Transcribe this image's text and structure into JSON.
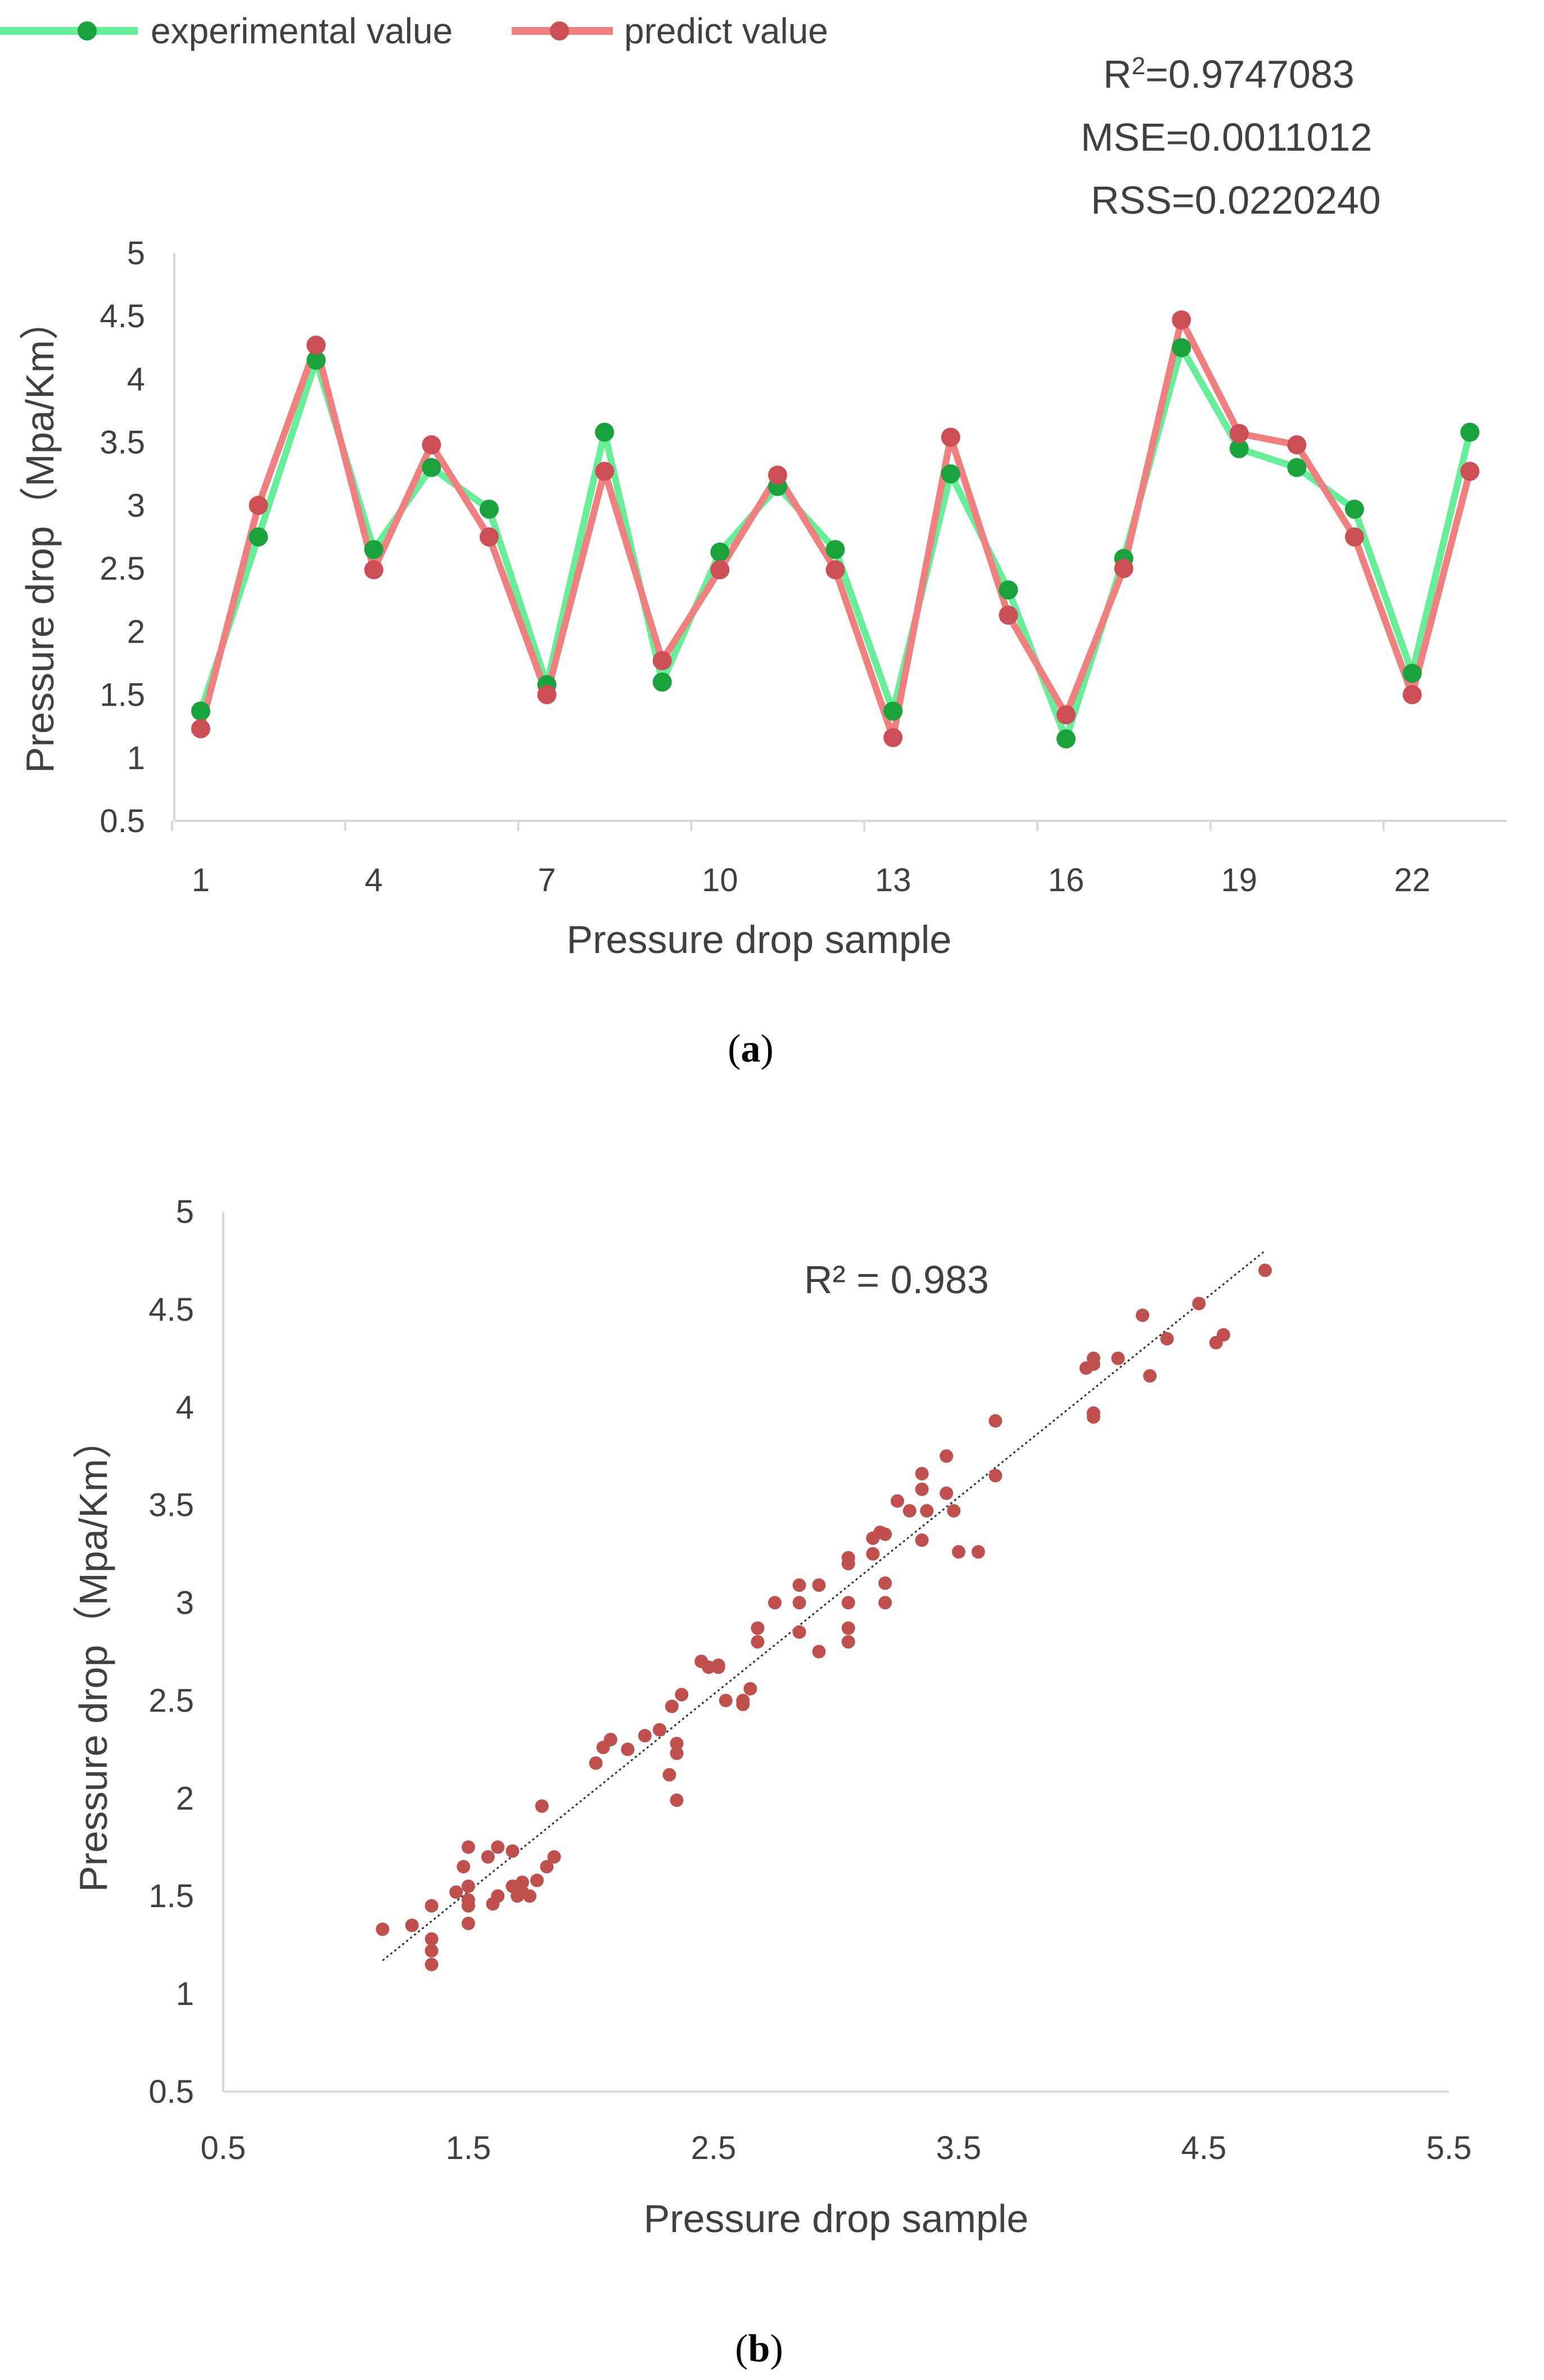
{
  "chart_data": [
    {
      "type": "line",
      "caption_open": "(",
      "caption_label": "a",
      "caption_close": ")",
      "xlabel": "Pressure drop sample",
      "ylabel": "Pressure drop（Mpa/Km）",
      "ylim": [
        0.5,
        5
      ],
      "yticks": [
        "0.5",
        "1",
        "1.5",
        "2",
        "2.5",
        "3",
        "3.5",
        "4",
        "4.5",
        "5"
      ],
      "xticks": [
        "1",
        "4",
        "7",
        "10",
        "13",
        "16",
        "19",
        "22"
      ],
      "x": [
        1,
        2,
        3,
        4,
        5,
        6,
        7,
        8,
        9,
        10,
        11,
        12,
        13,
        14,
        15,
        16,
        17,
        18,
        19,
        20,
        21,
        22,
        23
      ],
      "legend_position": "top-left",
      "series": [
        {
          "name": "experimental value",
          "color": "#66ee99",
          "marker_color": "#1aa33c",
          "values": [
            1.37,
            2.75,
            4.15,
            2.65,
            3.3,
            2.97,
            1.58,
            3.58,
            1.6,
            2.63,
            3.15,
            2.65,
            1.37,
            3.25,
            2.33,
            1.15,
            2.58,
            4.25,
            3.45,
            3.3,
            2.97,
            1.67,
            3.58
          ]
        },
        {
          "name": "predict value",
          "color": "#f08080",
          "marker_color": "#cc4f55",
          "values": [
            1.23,
            3.0,
            4.27,
            2.49,
            3.48,
            2.75,
            1.5,
            3.27,
            1.77,
            2.49,
            3.24,
            2.49,
            1.16,
            3.54,
            2.13,
            1.34,
            2.5,
            4.47,
            3.57,
            3.48,
            2.75,
            1.5,
            3.27
          ]
        }
      ],
      "annotations": {
        "r2_prefix": "R",
        "r2_sup": "2",
        "r2_value": "=0.9747083",
        "mse": "MSE=0.0011012",
        "rss": "RSS=0.0220240"
      }
    },
    {
      "type": "scatter",
      "caption_open": "(",
      "caption_label": "b",
      "caption_close": ")",
      "xlabel": "Pressure drop sample",
      "ylabel": "Pressure drop（Mpa/Km）",
      "xlim": [
        0.5,
        5.5
      ],
      "ylim": [
        0.5,
        5
      ],
      "xticks": [
        "0.5",
        "1.5",
        "2.5",
        "3.5",
        "4.5",
        "5.5"
      ],
      "yticks": [
        "0.5",
        "1",
        "1.5",
        "2",
        "2.5",
        "3",
        "3.5",
        "4",
        "4.5",
        "5"
      ],
      "marker_color": "#c0504d",
      "annotation": "R² = 0.983",
      "trendline": {
        "x": [
          1.15,
          4.75
        ],
        "y": [
          1.17,
          4.8
        ]
      },
      "points": [
        [
          1.15,
          1.33
        ],
        [
          1.27,
          1.35
        ],
        [
          1.35,
          1.45
        ],
        [
          1.35,
          1.28
        ],
        [
          1.35,
          1.22
        ],
        [
          1.35,
          1.15
        ],
        [
          1.45,
          1.52
        ],
        [
          1.48,
          1.65
        ],
        [
          1.5,
          1.75
        ],
        [
          1.5,
          1.55
        ],
        [
          1.5,
          1.48
        ],
        [
          1.5,
          1.45
        ],
        [
          1.5,
          1.36
        ],
        [
          1.58,
          1.7
        ],
        [
          1.6,
          1.46
        ],
        [
          1.62,
          1.75
        ],
        [
          1.62,
          1.5
        ],
        [
          1.68,
          1.73
        ],
        [
          1.68,
          1.55
        ],
        [
          1.7,
          1.5
        ],
        [
          1.72,
          1.57
        ],
        [
          1.72,
          1.52
        ],
        [
          1.75,
          1.5
        ],
        [
          1.78,
          1.58
        ],
        [
          1.8,
          1.96
        ],
        [
          1.82,
          1.65
        ],
        [
          1.85,
          1.7
        ],
        [
          2.02,
          2.18
        ],
        [
          2.05,
          2.26
        ],
        [
          2.08,
          2.3
        ],
        [
          2.15,
          2.25
        ],
        [
          2.22,
          2.32
        ],
        [
          2.28,
          2.35
        ],
        [
          2.32,
          2.12
        ],
        [
          2.33,
          2.47
        ],
        [
          2.35,
          2.28
        ],
        [
          2.35,
          2.23
        ],
        [
          2.35,
          1.99
        ],
        [
          2.37,
          2.53
        ],
        [
          2.45,
          2.7
        ],
        [
          2.48,
          2.67
        ],
        [
          2.52,
          2.68
        ],
        [
          2.52,
          2.67
        ],
        [
          2.55,
          2.5
        ],
        [
          2.62,
          2.5
        ],
        [
          2.62,
          2.48
        ],
        [
          2.65,
          2.56
        ],
        [
          2.68,
          2.87
        ],
        [
          2.68,
          2.8
        ],
        [
          2.75,
          3.0
        ],
        [
          2.85,
          3.09
        ],
        [
          2.85,
          3.0
        ],
        [
          2.85,
          2.85
        ],
        [
          2.93,
          3.09
        ],
        [
          2.93,
          2.75
        ],
        [
          3.05,
          3.23
        ],
        [
          3.05,
          3.2
        ],
        [
          3.05,
          3.0
        ],
        [
          3.05,
          2.87
        ],
        [
          3.05,
          2.8
        ],
        [
          3.15,
          3.33
        ],
        [
          3.15,
          3.25
        ],
        [
          3.18,
          3.36
        ],
        [
          3.2,
          3.35
        ],
        [
          3.2,
          3.1
        ],
        [
          3.2,
          3.0
        ],
        [
          3.25,
          3.52
        ],
        [
          3.3,
          3.47
        ],
        [
          3.35,
          3.66
        ],
        [
          3.35,
          3.58
        ],
        [
          3.35,
          3.32
        ],
        [
          3.37,
          3.47
        ],
        [
          3.45,
          3.75
        ],
        [
          3.45,
          3.56
        ],
        [
          3.48,
          3.47
        ],
        [
          3.5,
          3.26
        ],
        [
          3.58,
          3.26
        ],
        [
          3.65,
          3.93
        ],
        [
          3.65,
          3.65
        ],
        [
          4.02,
          4.2
        ],
        [
          4.05,
          4.25
        ],
        [
          4.05,
          4.22
        ],
        [
          4.05,
          3.97
        ],
        [
          4.05,
          3.95
        ],
        [
          4.15,
          4.25
        ],
        [
          4.25,
          4.47
        ],
        [
          4.28,
          4.16
        ],
        [
          4.35,
          4.35
        ],
        [
          4.48,
          4.53
        ],
        [
          4.55,
          4.33
        ],
        [
          4.58,
          4.37
        ],
        [
          4.75,
          4.7
        ]
      ]
    }
  ]
}
